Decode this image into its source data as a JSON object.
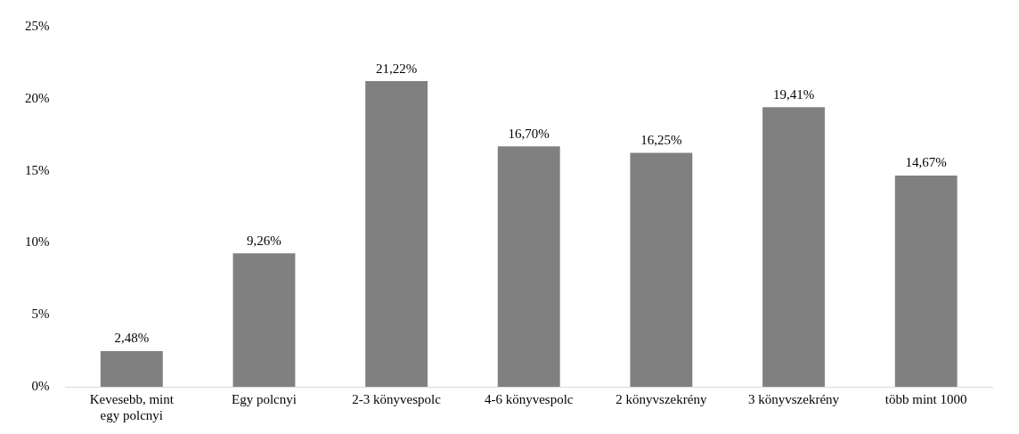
{
  "chart_data": {
    "type": "bar",
    "categories": [
      "Kevesebb, mint egy polcnyi",
      "Egy polcnyi",
      "2-3 könyvespolc",
      "4-6 könyvespolc",
      "2 könyvszekrény",
      "3 könyvszekrény",
      "több mint 1000"
    ],
    "values": [
      2.48,
      9.26,
      21.22,
      16.7,
      16.25,
      19.41,
      14.67
    ],
    "value_labels": [
      "2,48%",
      "9,26%",
      "21,22%",
      "16,70%",
      "16,25%",
      "19,41%",
      "14,67%"
    ],
    "color": "#808080",
    "ylim": [
      0,
      25
    ],
    "yticks": [
      {
        "value": 0,
        "label": "0%"
      },
      {
        "value": 5,
        "label": "5%"
      },
      {
        "value": 10,
        "label": "10%"
      },
      {
        "value": 15,
        "label": "15%"
      },
      {
        "value": 20,
        "label": "20%"
      },
      {
        "value": 25,
        "label": "25%"
      }
    ],
    "grid": false,
    "legend": false
  }
}
